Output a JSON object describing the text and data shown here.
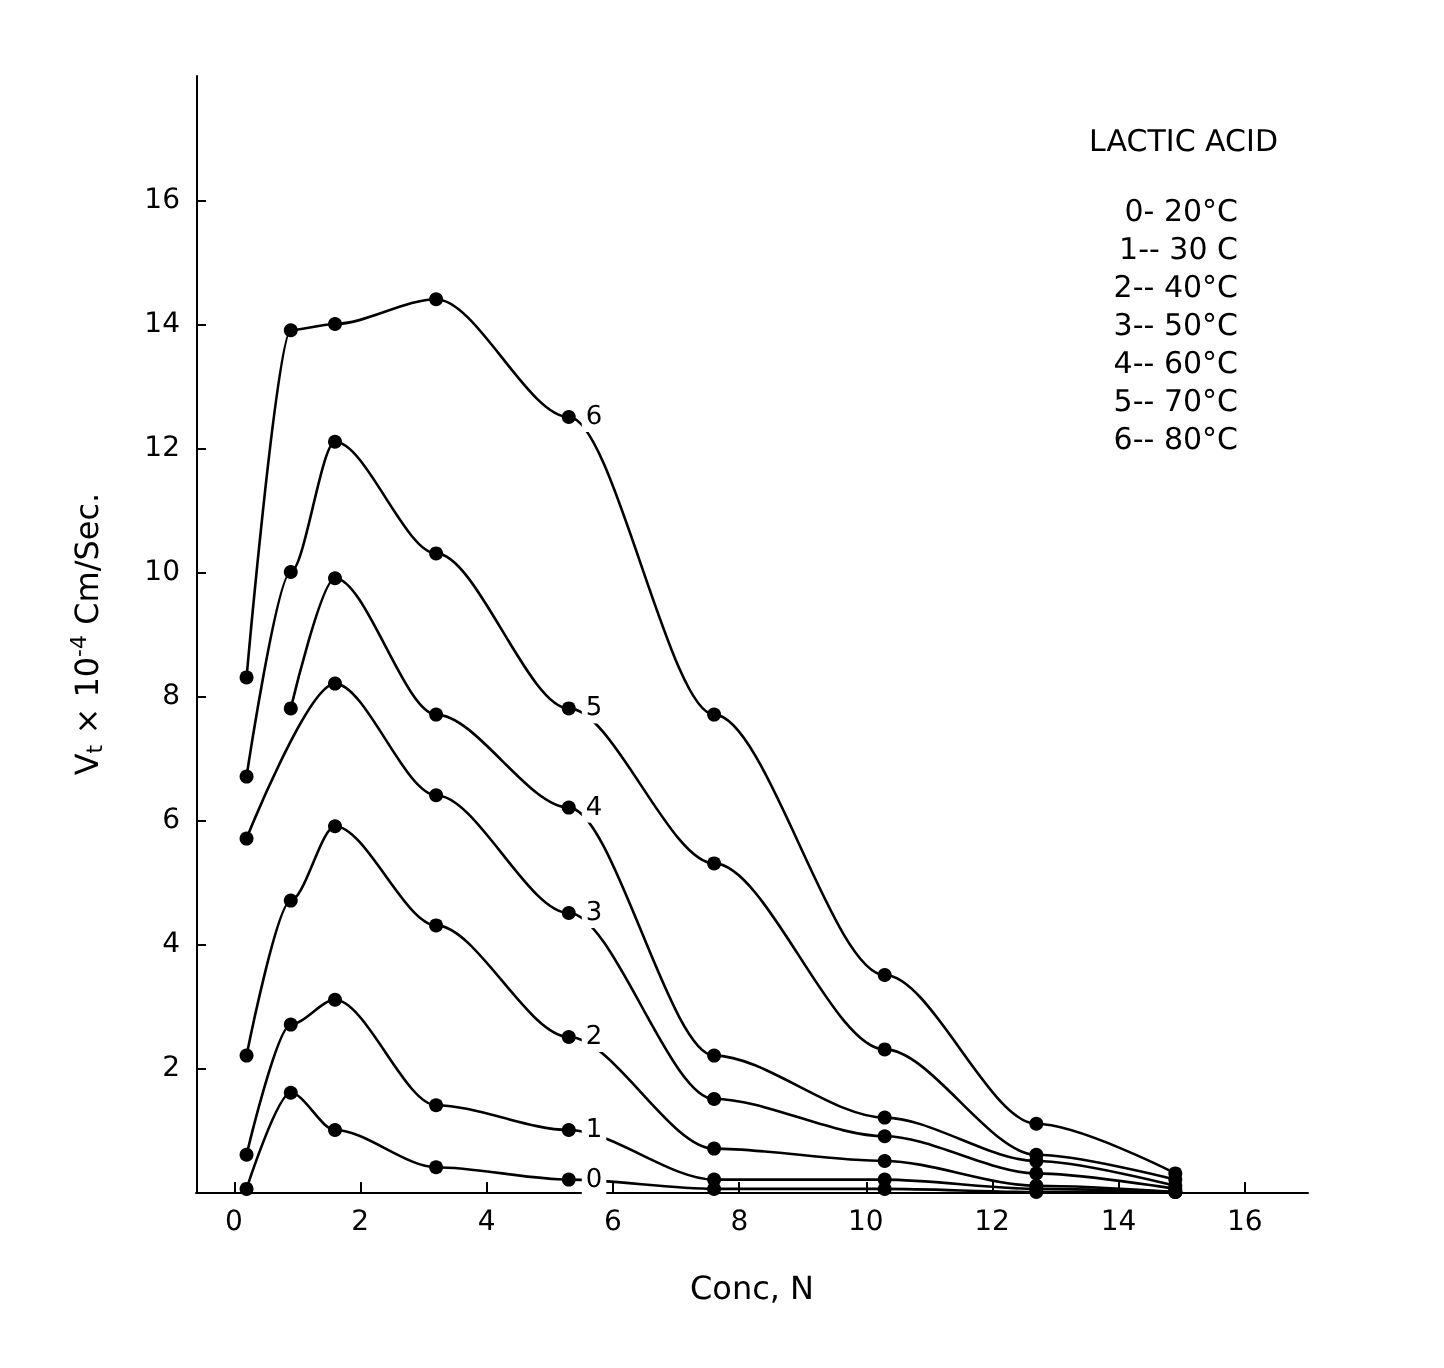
{
  "chart_data": {
    "type": "line",
    "title": "LACTIC ACID",
    "xlabel": "Conc, N",
    "ylabel": "V$_{t}$ × 10$^{-4}$ Cm/Sec.",
    "xlim": [
      -0.6,
      17
    ],
    "xticks": [
      0,
      2,
      4,
      6,
      8,
      10,
      12,
      14,
      16
    ],
    "ylim": [
      0,
      18
    ],
    "yticks": [
      2,
      4,
      6,
      8,
      10,
      12,
      14,
      16
    ],
    "grid": false,
    "marker": "circle",
    "line_style": "solid",
    "x": [
      0.2,
      0.9,
      1.6,
      3.2,
      5.3,
      7.6,
      10.3,
      12.7,
      14.9
    ],
    "series": [
      {
        "name": "0",
        "color": "#000000",
        "values": [
          0.05,
          1.6,
          1.0,
          0.4,
          0.2,
          0.05,
          0.05,
          0,
          0
        ]
      },
      {
        "name": "1",
        "color": "#000000",
        "values": [
          0.6,
          2.7,
          3.1,
          1.4,
          1.0,
          0.2,
          0.2,
          0.05,
          0
        ]
      },
      {
        "name": "2",
        "color": "#000000",
        "values": [
          2.2,
          4.7,
          5.9,
          4.3,
          2.5,
          0.7,
          0.5,
          0.1,
          0
        ]
      },
      {
        "name": "3",
        "color": "#000000",
        "values": [
          5.7,
          null,
          8.2,
          6.4,
          4.5,
          1.5,
          0.9,
          0.3,
          0.05
        ]
      },
      {
        "name": "4",
        "color": "#000000",
        "values": [
          null,
          7.8,
          9.9,
          7.7,
          6.2,
          2.2,
          1.2,
          0.5,
          0.1
        ]
      },
      {
        "name": "5",
        "color": "#000000",
        "values": [
          6.7,
          10.0,
          12.1,
          10.3,
          7.8,
          5.3,
          2.3,
          0.6,
          0.2
        ]
      },
      {
        "name": "6",
        "color": "#000000",
        "values": [
          8.3,
          13.9,
          14.0,
          14.4,
          12.5,
          7.7,
          3.5,
          1.1,
          0.3
        ]
      }
    ],
    "annotations": [
      "0- 20°C",
      "1-- 30 C",
      "2-- 40°C",
      "3-- 50°C",
      "4-- 60°C",
      "5-- 70°C",
      "6-- 80°C"
    ]
  }
}
